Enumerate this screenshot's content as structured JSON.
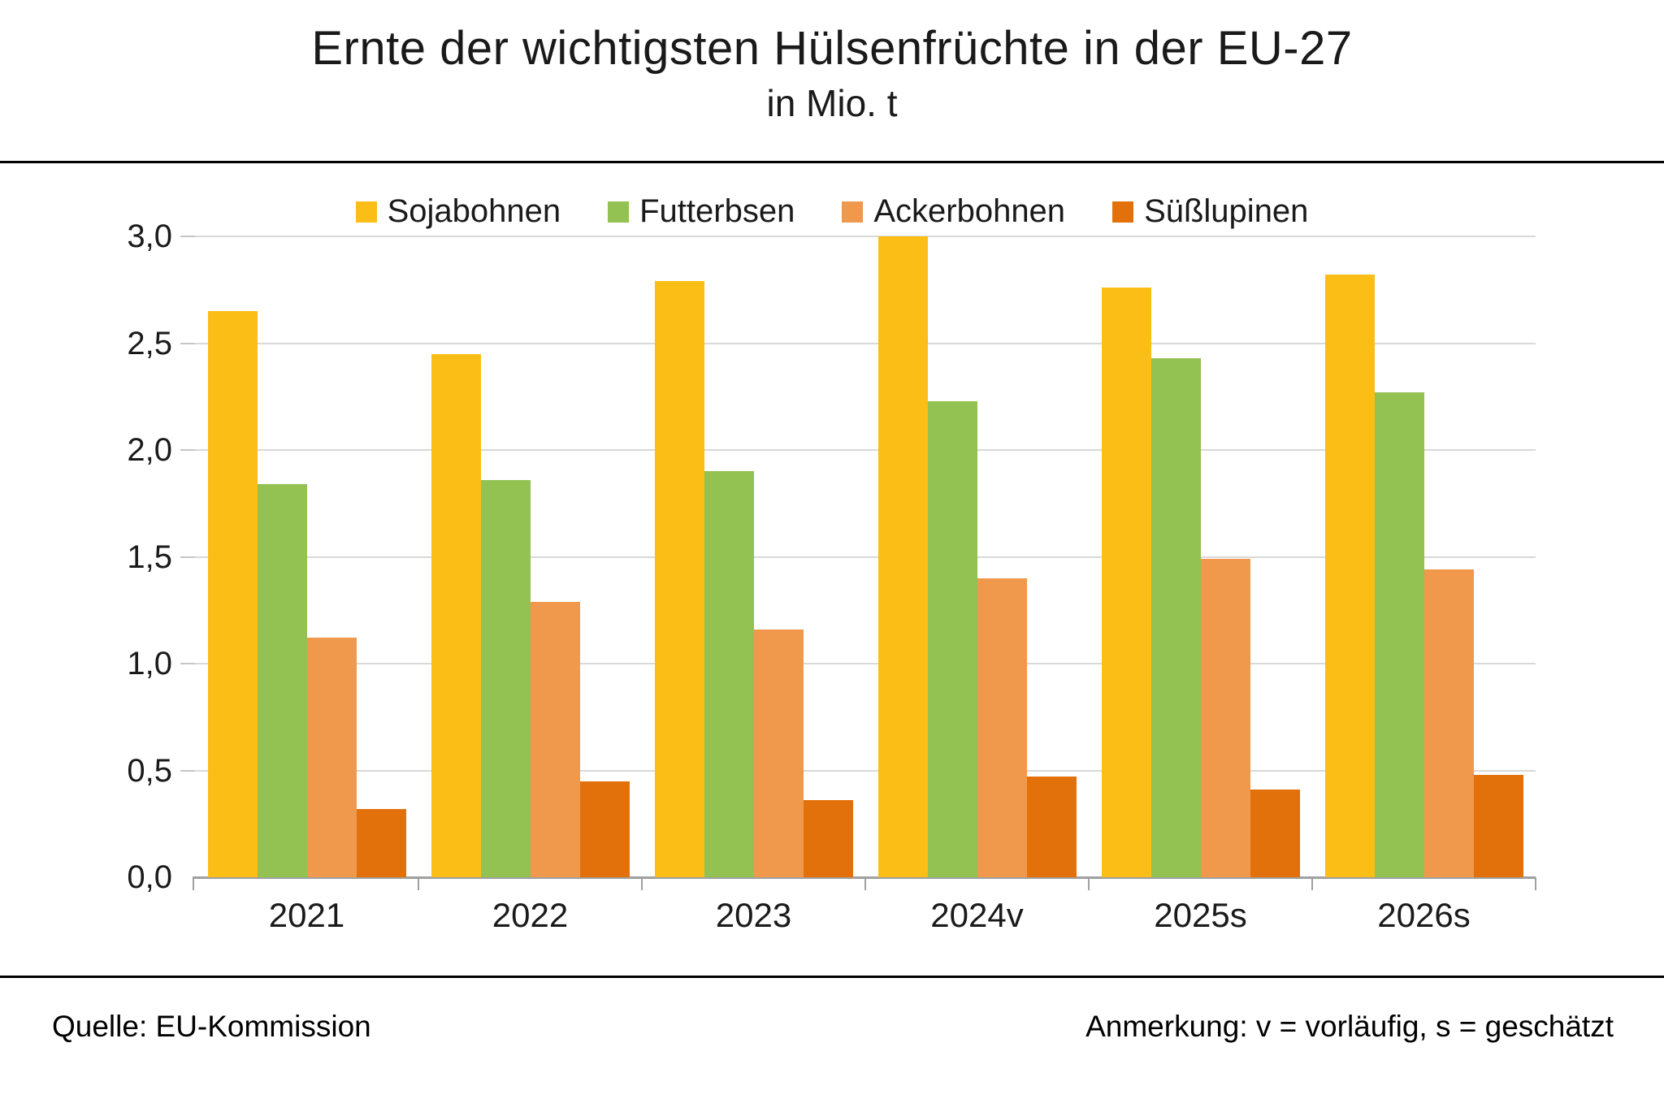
{
  "header": {
    "title": "Ernte der wichtigsten Hülsenfrüchte in der EU-27",
    "subtitle": "in Mio. t"
  },
  "footer": {
    "source": "Quelle: EU-Kommission",
    "note": "Anmerkung: v = vorläufig, s = geschätzt"
  },
  "colors": {
    "sojabohnen": "#fbbe16",
    "futterbsen": "#93c152",
    "ackerbohnen": "#f0994d",
    "suesslupinen": "#e2710b",
    "gridline": "#d9d9d9",
    "axis": "#a0a0a0"
  },
  "chart_data": {
    "type": "bar",
    "title": "Ernte der wichtigsten Hülsenfrüchte in der EU-27",
    "subtitle": "in Mio. t",
    "categories": [
      "2021",
      "2022",
      "2023",
      "2024v",
      "2025s",
      "2026s"
    ],
    "series": [
      {
        "name": "Sojabohnen",
        "color": "#fbbe16",
        "values": [
          2.65,
          2.45,
          2.79,
          3.0,
          2.76,
          2.82
        ]
      },
      {
        "name": "Futterbsen",
        "color": "#93c152",
        "values": [
          1.84,
          1.86,
          1.9,
          2.23,
          2.43,
          2.27
        ]
      },
      {
        "name": "Ackerbohnen",
        "color": "#f0994d",
        "values": [
          1.12,
          1.29,
          1.16,
          1.4,
          1.49,
          1.44
        ]
      },
      {
        "name": "Süßlupinen",
        "color": "#e2710b",
        "values": [
          0.32,
          0.45,
          0.36,
          0.47,
          0.41,
          0.48
        ]
      }
    ],
    "xlabel": "",
    "ylabel": "",
    "ylim": [
      0,
      3
    ],
    "yticks": [
      {
        "value": 0.0,
        "label": "0,0"
      },
      {
        "value": 0.5,
        "label": "0,5"
      },
      {
        "value": 1.0,
        "label": "1,0"
      },
      {
        "value": 1.5,
        "label": "1,5"
      },
      {
        "value": 2.0,
        "label": "2,0"
      },
      {
        "value": 2.5,
        "label": "2,5"
      },
      {
        "value": 3.0,
        "label": "3,0"
      }
    ],
    "grid": true,
    "legend_position": "top"
  }
}
